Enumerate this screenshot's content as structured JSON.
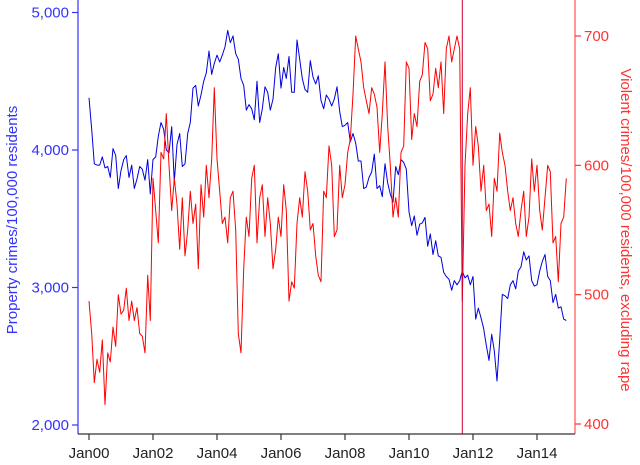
{
  "chart_data": {
    "type": "line",
    "title": "",
    "xlabel": "",
    "ylabel_left": "Property crimes/100,000 residents",
    "ylabel_right": "Violent crimes/100,000 residents, excluding rape",
    "x_ticks": [
      "Jan00",
      "Jan02",
      "Jan04",
      "Jan06",
      "Jan08",
      "Jan10",
      "Jan12",
      "Jan14"
    ],
    "y_left_ticks": [
      "2,000",
      "3,000",
      "4,000",
      "5,000"
    ],
    "y_left_range": [
      1930,
      5070
    ],
    "y_right_ticks": [
      "400",
      "500",
      "600",
      "700"
    ],
    "y_right_range": [
      392,
      728
    ],
    "grid": false,
    "legend": "none",
    "vertical_marker": {
      "x_month_index": 140,
      "label": "",
      "color": "#cc0033"
    },
    "colors": {
      "left_axis": "#3333ff",
      "right_axis": "#ff3333",
      "property": "#0000dd",
      "violent": "#ff0000"
    },
    "x_start": "Jan 2000",
    "x_step": "month",
    "series": [
      {
        "name": "Property crimes/100,000 residents",
        "axis": "left",
        "month_index": [
          0,
          1,
          2,
          3,
          4,
          5,
          6,
          7,
          8,
          9,
          10,
          11,
          12,
          13,
          14,
          15,
          16,
          17,
          18,
          19,
          20,
          21,
          22,
          23,
          24,
          25,
          26,
          27,
          28,
          29,
          30,
          31,
          32,
          33,
          34,
          35,
          36,
          37,
          38,
          39,
          40,
          41,
          42,
          43,
          44,
          45,
          46,
          47,
          48,
          49,
          50,
          51,
          52,
          53,
          54,
          55,
          56,
          57,
          58,
          59,
          60,
          61,
          62,
          63,
          64,
          65,
          66,
          67,
          68,
          69,
          70,
          71,
          72,
          73,
          74,
          75,
          76,
          77,
          78,
          79,
          80,
          81,
          82,
          83,
          84,
          85,
          86,
          87,
          88,
          89,
          90,
          91,
          92,
          93,
          94,
          95,
          96,
          97,
          98,
          99,
          100,
          101,
          102,
          103,
          104,
          105,
          106,
          107,
          108,
          109,
          110,
          111,
          112,
          113,
          114,
          115,
          116,
          117,
          118,
          119,
          120,
          121,
          122,
          123,
          124,
          125,
          126,
          127,
          128,
          129,
          130,
          131,
          132,
          133,
          134,
          135,
          136,
          137,
          138,
          139,
          140,
          141,
          142,
          143,
          144,
          145,
          146,
          147,
          148,
          149,
          150,
          151,
          152,
          153,
          154,
          155,
          156,
          157,
          158,
          159,
          160,
          161,
          162,
          163,
          164,
          165,
          166,
          167,
          168,
          169,
          170,
          171,
          172,
          173,
          174,
          175,
          176,
          177,
          178,
          179
        ],
        "values": [
          4380,
          4150,
          3900,
          3890,
          3890,
          3950,
          3870,
          3880,
          3800,
          4010,
          3960,
          3720,
          3850,
          3930,
          3960,
          3800,
          3890,
          3720,
          3790,
          3880,
          3860,
          3780,
          3930,
          3680,
          3930,
          3950,
          4100,
          4200,
          4150,
          4000,
          3980,
          4170,
          3770,
          4040,
          4120,
          3880,
          3900,
          4120,
          4200,
          4450,
          4470,
          4320,
          4400,
          4500,
          4560,
          4720,
          4550,
          4630,
          4690,
          4640,
          4690,
          4750,
          4870,
          4780,
          4830,
          4700,
          4660,
          4520,
          4470,
          4290,
          4330,
          4300,
          4220,
          4500,
          4200,
          4300,
          4460,
          4420,
          4290,
          4370,
          4600,
          4700,
          4450,
          4600,
          4520,
          4680,
          4420,
          4420,
          4800,
          4660,
          4520,
          4440,
          4420,
          4650,
          4530,
          4480,
          4540,
          4360,
          4300,
          4400,
          4370,
          4320,
          4370,
          4460,
          4280,
          4170,
          4180,
          4200,
          4060,
          4120,
          4050,
          3920,
          3920,
          3720,
          3730,
          3800,
          3840,
          3970,
          3720,
          3740,
          3660,
          3900,
          3760,
          3680,
          3620,
          3880,
          3820,
          3930,
          3910,
          3860,
          3550,
          3450,
          3520,
          3380,
          3460,
          3470,
          3510,
          3300,
          3390,
          3240,
          3340,
          3230,
          3220,
          3110,
          3080,
          3060,
          2980,
          3050,
          3020,
          3050,
          3120,
          3070,
          3090,
          3020,
          3080,
          2770,
          2850,
          2780,
          2700,
          2580,
          2470,
          2660,
          2540,
          2320,
          2620,
          2950,
          2940,
          2920,
          3020,
          3050,
          2990,
          3120,
          3150,
          3260,
          3200,
          3230,
          3050,
          3010,
          3020,
          3120,
          3190,
          3240,
          3080,
          3050,
          2890,
          2950,
          2850,
          2860,
          2770,
          2760,
          2840
        ]
      },
      {
        "name": "Violent crimes/100,000 residents, excluding rape",
        "axis": "right",
        "month_index": [
          0,
          1,
          2,
          3,
          4,
          5,
          6,
          7,
          8,
          9,
          10,
          11,
          12,
          13,
          14,
          15,
          16,
          17,
          18,
          19,
          20,
          21,
          22,
          23,
          24,
          25,
          26,
          27,
          28,
          29,
          30,
          31,
          32,
          33,
          34,
          35,
          36,
          37,
          38,
          39,
          40,
          41,
          42,
          43,
          44,
          45,
          46,
          47,
          48,
          49,
          50,
          51,
          52,
          53,
          54,
          55,
          56,
          57,
          58,
          59,
          60,
          61,
          62,
          63,
          64,
          65,
          66,
          67,
          68,
          69,
          70,
          71,
          72,
          73,
          74,
          75,
          76,
          77,
          78,
          79,
          80,
          81,
          82,
          83,
          84,
          85,
          86,
          87,
          88,
          89,
          90,
          91,
          92,
          93,
          94,
          95,
          96,
          97,
          98,
          99,
          100,
          101,
          102,
          103,
          104,
          105,
          106,
          107,
          108,
          109,
          110,
          111,
          112,
          113,
          114,
          115,
          116,
          117,
          118,
          119,
          120,
          121,
          122,
          123,
          124,
          125,
          126,
          127,
          128,
          129,
          130,
          131,
          132,
          133,
          134,
          135,
          136,
          137,
          138,
          139,
          140,
          141,
          142,
          143,
          144,
          145,
          146,
          147,
          148,
          149,
          150,
          151,
          152,
          153,
          154,
          155,
          156,
          157,
          158,
          159,
          160,
          161,
          162,
          163,
          164,
          165,
          166,
          167,
          168,
          169,
          170,
          171,
          172,
          173,
          174,
          175,
          176,
          177,
          178,
          179
        ],
        "values": [
          495,
          470,
          432,
          450,
          440,
          465,
          415,
          455,
          448,
          475,
          460,
          500,
          485,
          488,
          505,
          480,
          495,
          480,
          490,
          470,
          468,
          455,
          515,
          480,
          590,
          565,
          540,
          610,
          605,
          640,
          600,
          565,
          590,
          570,
          535,
          575,
          530,
          550,
          580,
          555,
          570,
          520,
          585,
          560,
          600,
          575,
          605,
          660,
          605,
          580,
          555,
          560,
          540,
          575,
          580,
          550,
          470,
          455,
          520,
          560,
          545,
          590,
          600,
          540,
          575,
          585,
          545,
          575,
          555,
          520,
          535,
          560,
          545,
          585,
          565,
          495,
          510,
          505,
          555,
          575,
          560,
          595,
          580,
          550,
          555,
          530,
          515,
          510,
          580,
          575,
          615,
          600,
          545,
          550,
          600,
          575,
          585,
          610,
          620,
          655,
          700,
          690,
          680,
          660,
          650,
          640,
          660,
          655,
          645,
          610,
          640,
          680,
          630,
          600,
          560,
          575,
          560,
          610,
          615,
          680,
          675,
          620,
          640,
          630,
          665,
          670,
          695,
          690,
          650,
          655,
          675,
          660,
          680,
          640,
          690,
          700,
          680,
          690,
          700,
          690,
          495,
          600,
          640,
          660,
          600,
          630,
          615,
          580,
          600,
          565,
          570,
          545,
          590,
          580,
          625,
          610,
          600,
          580,
          565,
          575,
          555,
          545,
          565,
          580,
          545,
          560,
          605,
          580,
          600,
          565,
          550,
          575,
          600,
          595,
          540,
          545,
          510,
          555,
          560,
          590
        ]
      }
    ]
  }
}
